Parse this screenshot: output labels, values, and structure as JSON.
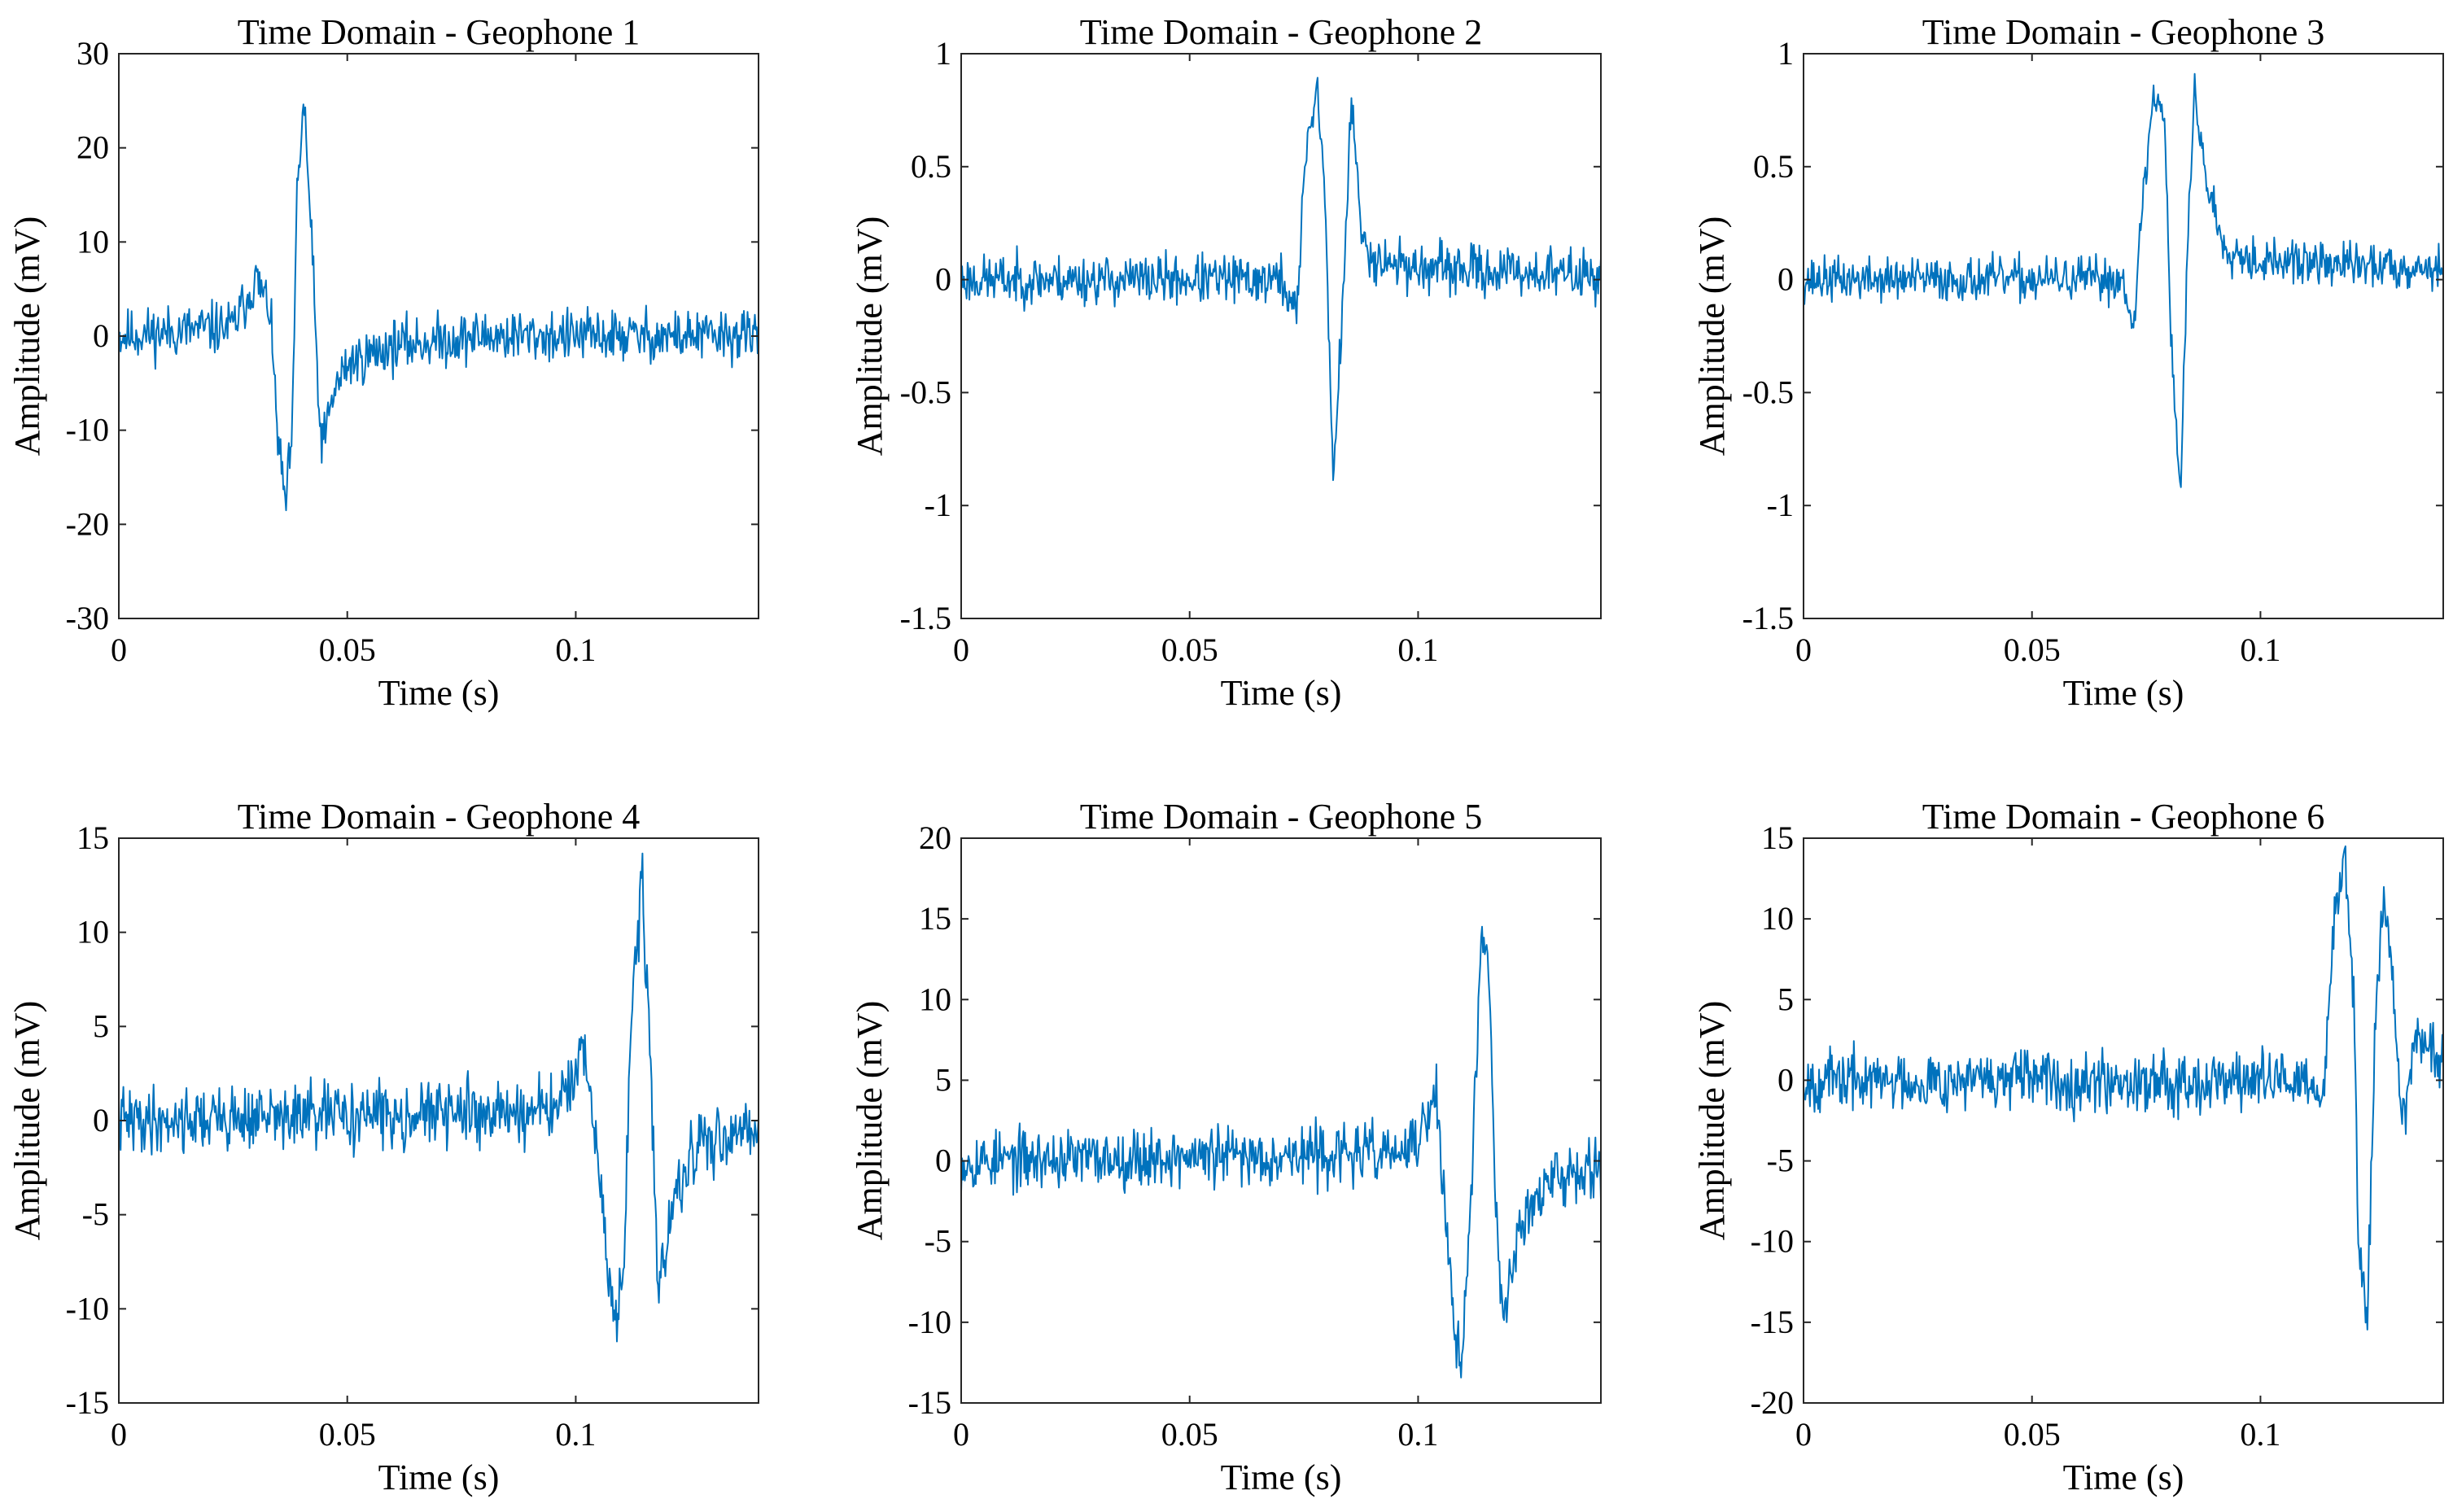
{
  "chart_data": [
    {
      "type": "line",
      "title": "Time Domain - Geophone 1",
      "xlabel": "Time (s)",
      "ylabel": "Amplitude (mV)",
      "xlim": [
        0,
        0.14
      ],
      "ylim": [
        -30,
        30
      ],
      "xticks": [
        0,
        0.05,
        0.1
      ],
      "xtick_labels": [
        "0",
        "0.05",
        "0.1"
      ],
      "yticks": [
        -30,
        -20,
        -10,
        0,
        10,
        20,
        30
      ],
      "ytick_labels": [
        "-30",
        "-20",
        "-10",
        "0",
        "10",
        "20",
        "30"
      ],
      "noise": 2.6,
      "seed": 11,
      "series": [
        {
          "name": "Geophone 1",
          "color": "#0072BD",
          "x": [
            0,
            0.025,
            0.03,
            0.033,
            0.035,
            0.0365,
            0.038,
            0.039,
            0.0405,
            0.042,
            0.044,
            0.045,
            0.047,
            0.05,
            0.06,
            0.08,
            0.1,
            0.14
          ],
          "y": [
            0,
            1,
            6,
            3,
            -12,
            -18,
            -10,
            15,
            25,
            12,
            -10,
            -11,
            -6,
            -3,
            -1,
            0,
            0,
            0
          ]
        }
      ]
    },
    {
      "type": "line",
      "title": "Time Domain - Geophone 2",
      "xlabel": "Time (s)",
      "ylabel": "Amplitude (mV)",
      "xlim": [
        0,
        0.14
      ],
      "ylim": [
        -1.5,
        1
      ],
      "xticks": [
        0,
        0.05,
        0.1
      ],
      "xtick_labels": [
        "0",
        "0.05",
        "0.1"
      ],
      "yticks": [
        -1.5,
        -1,
        -0.5,
        0,
        0.5,
        1
      ],
      "ytick_labels": [
        "-1.5",
        "-1",
        "-0.5",
        "0",
        "0.5",
        "1"
      ],
      "noise": 0.1,
      "seed": 23,
      "series": [
        {
          "name": "Geophone 2",
          "color": "#0072BD",
          "x": [
            0,
            0.07,
            0.0735,
            0.0755,
            0.078,
            0.0795,
            0.0815,
            0.083,
            0.0855,
            0.0875,
            0.09,
            0.1,
            0.14
          ],
          "y": [
            0,
            0,
            -0.15,
            0.6,
            0.85,
            0.4,
            -0.9,
            -0.3,
            0.8,
            0.2,
            0.1,
            0.05,
            0.02
          ]
        }
      ]
    },
    {
      "type": "line",
      "title": "Time Domain - Geophone 3",
      "xlabel": "Time (s)",
      "ylabel": "Amplitude (mV)",
      "xlim": [
        0,
        0.14
      ],
      "ylim": [
        -1.5,
        1
      ],
      "xticks": [
        0,
        0.05,
        0.1
      ],
      "xtick_labels": [
        "0",
        "0.05",
        "0.1"
      ],
      "yticks": [
        -1.5,
        -1,
        -0.5,
        0,
        0.5,
        1
      ],
      "ytick_labels": [
        "-1.5",
        "-1",
        "-0.5",
        "0",
        "0.5",
        "1"
      ],
      "noise": 0.09,
      "seed": 37,
      "series": [
        {
          "name": "Geophone 3",
          "color": "#0072BD",
          "x": [
            0,
            0.07,
            0.0725,
            0.074,
            0.0765,
            0.079,
            0.0805,
            0.0825,
            0.084,
            0.0855,
            0.088,
            0.092,
            0.1,
            0.14
          ],
          "y": [
            0,
            0,
            -0.2,
            0.3,
            0.8,
            0.75,
            -0.3,
            -0.95,
            0.1,
            0.85,
            0.45,
            0.15,
            0.08,
            0.05
          ]
        }
      ]
    },
    {
      "type": "line",
      "title": "Time Domain - Geophone 4",
      "xlabel": "Time (s)",
      "ylabel": "Amplitude (mV)",
      "xlim": [
        0,
        0.14
      ],
      "ylim": [
        -15,
        15
      ],
      "xticks": [
        0,
        0.05,
        0.1
      ],
      "xtick_labels": [
        "0",
        "0.05",
        "0.1"
      ],
      "yticks": [
        -15,
        -10,
        -5,
        0,
        5,
        10,
        15
      ],
      "ytick_labels": [
        "-15",
        "-10",
        "-5",
        "0",
        "5",
        "10",
        "15"
      ],
      "noise": 1.6,
      "seed": 41,
      "series": [
        {
          "name": "Geophone 4",
          "color": "#0072BD",
          "x": [
            0,
            0.095,
            0.1,
            0.102,
            0.105,
            0.107,
            0.109,
            0.1105,
            0.112,
            0.1145,
            0.116,
            0.118,
            0.12,
            0.125,
            0.13,
            0.14
          ],
          "y": [
            0,
            0.5,
            2.5,
            3,
            -2,
            -8,
            -11,
            -8,
            5,
            13,
            5,
            -9,
            -6,
            -2,
            -1,
            0
          ]
        }
      ]
    },
    {
      "type": "line",
      "title": "Time Domain - Geophone 5",
      "xlabel": "Time (s)",
      "ylabel": "Amplitude (mV)",
      "xlim": [
        0,
        0.14
      ],
      "ylim": [
        -15,
        20
      ],
      "xticks": [
        0,
        0.05,
        0.1
      ],
      "xtick_labels": [
        "0",
        "0.05",
        "0.1"
      ],
      "yticks": [
        -15,
        -10,
        -5,
        0,
        5,
        10,
        15,
        20
      ],
      "ytick_labels": [
        "-15",
        "-10",
        "-5",
        "0",
        "5",
        "10",
        "15",
        "20"
      ],
      "noise": 1.7,
      "seed": 53,
      "series": [
        {
          "name": "Geophone 5",
          "color": "#0072BD",
          "x": [
            0,
            0.098,
            0.102,
            0.104,
            0.1065,
            0.108,
            0.1095,
            0.111,
            0.1125,
            0.114,
            0.1155,
            0.117,
            0.1185,
            0.122,
            0.13,
            0.14
          ],
          "y": [
            0,
            0.5,
            2.5,
            4,
            -5,
            -11,
            -12,
            -6,
            4,
            14,
            12,
            -3,
            -10,
            -4,
            -1,
            0
          ]
        }
      ]
    },
    {
      "type": "line",
      "title": "Time Domain - Geophone 6",
      "xlabel": "Time (s)",
      "ylabel": "Amplitude (mV)",
      "xlim": [
        0,
        0.14
      ],
      "ylim": [
        -20,
        15
      ],
      "xticks": [
        0,
        0.05,
        0.1
      ],
      "xtick_labels": [
        "0",
        "0.05",
        "0.1"
      ],
      "yticks": [
        -20,
        -15,
        -10,
        -5,
        0,
        5,
        10,
        15
      ],
      "ytick_labels": [
        "-20",
        "-15",
        "-10",
        "-5",
        "0",
        "5",
        "10",
        "15"
      ],
      "noise": 1.7,
      "seed": 67,
      "series": [
        {
          "name": "Geophone 6",
          "color": "#0072BD",
          "x": [
            0,
            0.11,
            0.1135,
            0.116,
            0.1185,
            0.1205,
            0.1215,
            0.1235,
            0.125,
            0.127,
            0.129,
            0.131,
            0.134,
            0.14
          ],
          "y": [
            0,
            0,
            -2,
            10,
            14,
            5,
            -11,
            -15,
            3,
            12,
            6,
            -3,
            3,
            1
          ]
        }
      ]
    }
  ]
}
